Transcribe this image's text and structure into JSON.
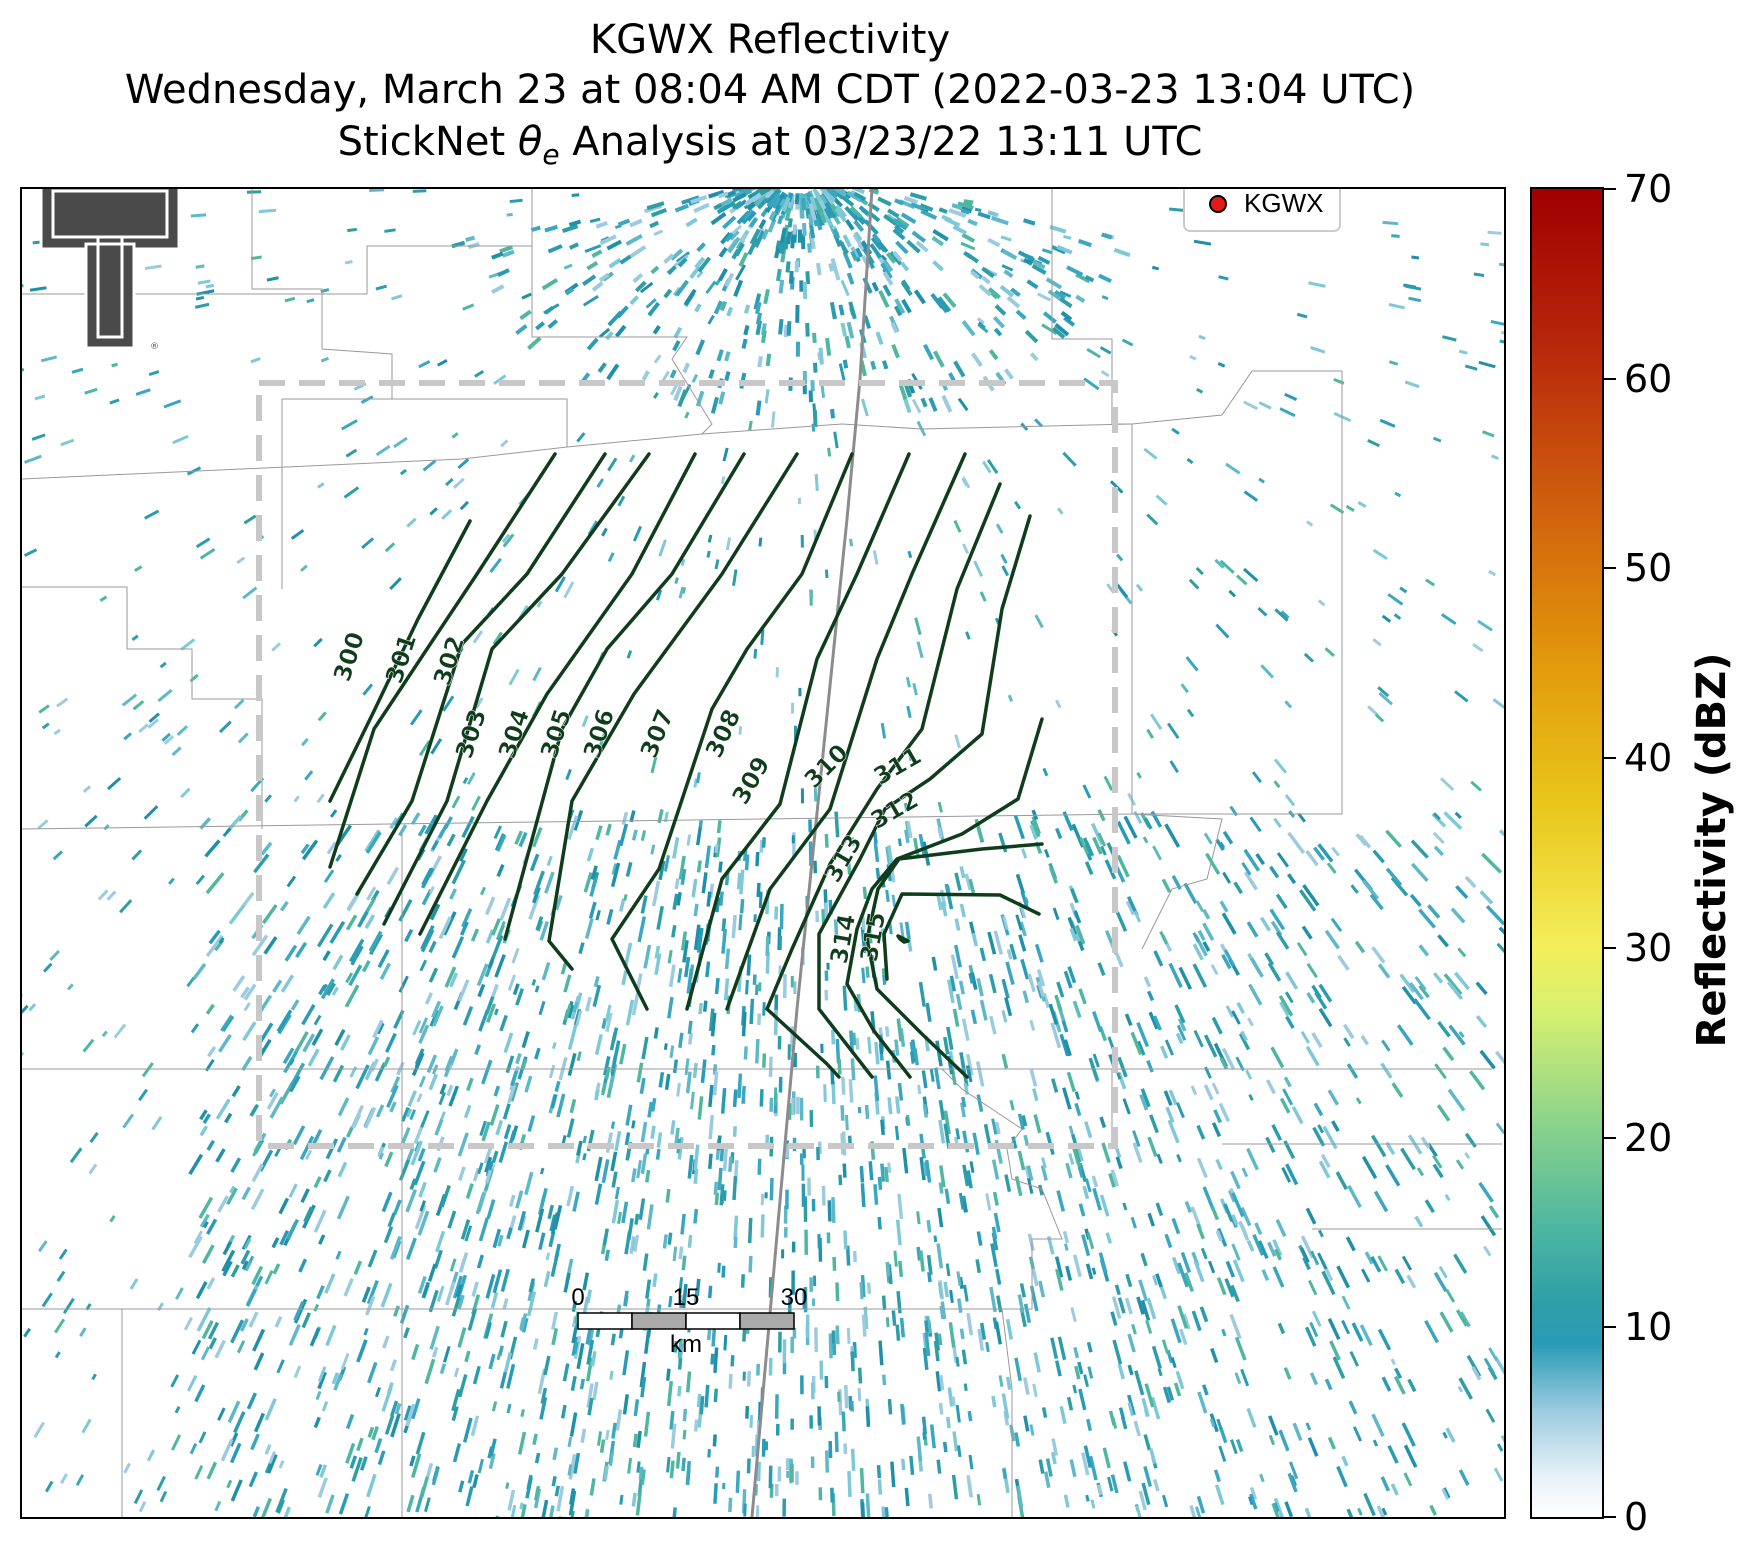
{
  "title_line1": "KGWX Reflectivity",
  "title_line2": "Wednesday, March 23 at 08:04 AM CDT (2022-03-23 13:04 UTC)",
  "title_line3_prefix": "StickNet ",
  "title_line3_theta": "θ",
  "title_line3_sub": "e",
  "title_line3_suffix": " Analysis at 03/23/22 13:11 UTC",
  "legend": {
    "label": "KGWX",
    "marker_color": "#e31a1c"
  },
  "colorbar": {
    "label": "Reflectivity (dBZ)",
    "ticks": [
      "0",
      "10",
      "20",
      "30",
      "40",
      "50",
      "60",
      "70"
    ],
    "range": [
      0,
      70
    ]
  },
  "contour_labels": [
    "300",
    "301",
    "302",
    "303",
    "304",
    "305",
    "306",
    "307",
    "308",
    "309",
    "310",
    "311",
    "312",
    "313",
    "314",
    "315"
  ],
  "contour_color": "#0f3d1c",
  "scale_bar": {
    "ticks": [
      "0",
      "15",
      "30"
    ],
    "unit": "km"
  },
  "logo": {
    "name": "Texas Tech Double T"
  }
}
